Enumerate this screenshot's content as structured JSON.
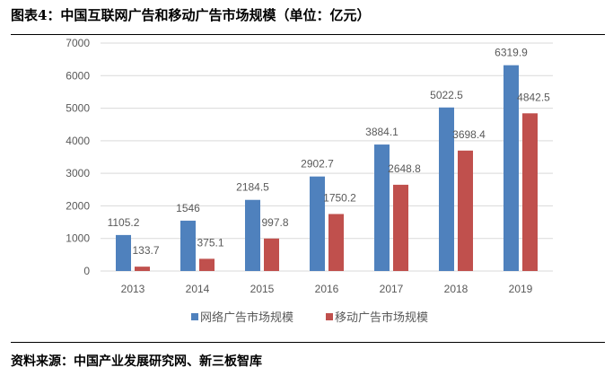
{
  "title": "图表4：中国互联网广告和移动广告市场规模（单位：亿元）",
  "source": "资料来源：中国产业发展研究网、新三板智库",
  "chart_data": {
    "type": "bar",
    "categories": [
      "2013",
      "2014",
      "2015",
      "2016",
      "2017",
      "2018",
      "2019"
    ],
    "series": [
      {
        "name": "网络广告市场规模",
        "color": "#4F81BD",
        "values": [
          1105.2,
          1546,
          2184.5,
          2902.7,
          3884.1,
          5022.5,
          6319.9
        ],
        "labels": [
          "1105.2",
          "1546",
          "2184.5",
          "2902.7",
          "3884.1",
          "5022.5",
          "6319.9"
        ]
      },
      {
        "name": "移动广告市场规模",
        "color": "#C0504D",
        "values": [
          133.7,
          375.1,
          997.8,
          1750.2,
          2648.8,
          3698.4,
          4842.5
        ],
        "labels": [
          "133.7",
          "375.1",
          "997.8",
          "1750.2",
          "2648.8",
          "3698.4",
          "4842.5"
        ]
      }
    ],
    "yticks": [
      "0",
      "1000",
      "2000",
      "3000",
      "4000",
      "5000",
      "6000",
      "7000"
    ],
    "ylim": [
      0,
      7000
    ],
    "grid": true,
    "legend": "bottom"
  }
}
